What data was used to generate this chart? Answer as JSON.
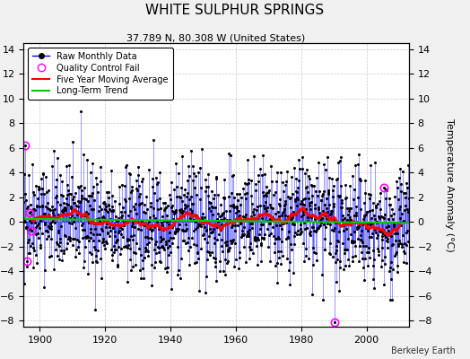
{
  "title": "WHITE SULPHUR SPRINGS",
  "subtitle": "37.789 N, 80.308 W (United States)",
  "ylabel": "Temperature Anomaly (°C)",
  "credit": "Berkeley Earth",
  "xlim": [
    1895,
    2013
  ],
  "ylim": [
    -8.5,
    14.5
  ],
  "yticks": [
    -8,
    -6,
    -4,
    -2,
    0,
    2,
    4,
    6,
    8,
    10,
    12,
    14
  ],
  "xticks": [
    1900,
    1920,
    1940,
    1960,
    1980,
    2000
  ],
  "seed": 42,
  "raw_color": "#0000FF",
  "ma_color": "#FF0000",
  "trend_color": "#00CC00",
  "qc_color": "#FF00FF",
  "background_color": "#F0F0F0",
  "plot_bg_color": "#FFFFFF"
}
